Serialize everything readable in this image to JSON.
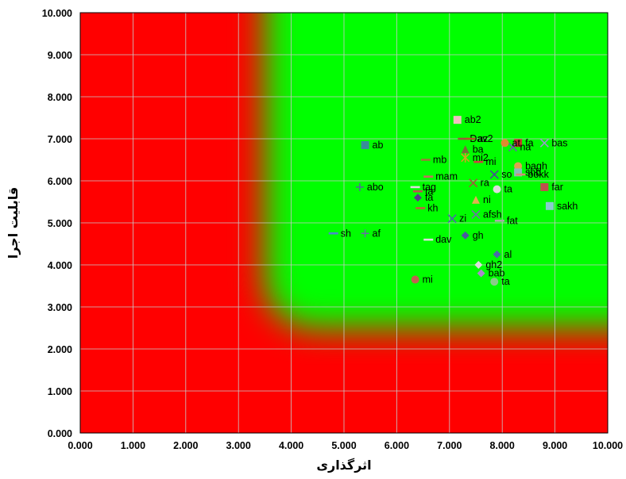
{
  "chart_data": {
    "type": "scatter",
    "xlabel": "اثرگذاری",
    "ylabel": "قابلیت اجرا",
    "xlim": [
      0,
      10
    ],
    "ylim": [
      0,
      10
    ],
    "xticks": [
      "0.000",
      "1.000",
      "2.000",
      "3.000",
      "4.000",
      "5.000",
      "6.000",
      "7.000",
      "8.000",
      "9.000",
      "10.000"
    ],
    "yticks": [
      "0.000",
      "1.000",
      "2.000",
      "3.000",
      "4.000",
      "5.000",
      "6.000",
      "7.000",
      "8.000",
      "9.000",
      "10.000"
    ],
    "grid": true,
    "background": {
      "low_color": "#ff0000",
      "high_color": "#00ff00"
    },
    "points": [
      {
        "label": "ab2",
        "x": 7.15,
        "y": 7.45,
        "marker": "square",
        "color": "#f0c0c0"
      },
      {
        "label": "Dav2",
        "x": 7.25,
        "y": 7.0,
        "marker": "dash",
        "color": "#9b5a3c"
      },
      {
        "label": "az",
        "x": 7.4,
        "y": 7.0,
        "marker": "dash",
        "color": "#b05a2a"
      },
      {
        "label": "fa",
        "x": 8.3,
        "y": 6.9,
        "marker": "square",
        "color": "#c0392b"
      },
      {
        "label": "bas",
        "x": 8.8,
        "y": 6.9,
        "marker": "x",
        "color": "#9999cc"
      },
      {
        "label": "ab",
        "x": 5.4,
        "y": 6.85,
        "marker": "square",
        "color": "#3a8a9a"
      },
      {
        "label": "ba",
        "x": 7.3,
        "y": 6.75,
        "marker": "triangle",
        "color": "#7a6a3a"
      },
      {
        "label": "na",
        "x": 8.2,
        "y": 6.8,
        "marker": "x",
        "color": "#6666aa"
      },
      {
        "label": "at",
        "x": 8.05,
        "y": 6.9,
        "marker": "circle",
        "color": "#e08a30"
      },
      {
        "label": "mb",
        "x": 6.55,
        "y": 6.5,
        "marker": "dash",
        "color": "#9b7a3a"
      },
      {
        "label": "mi2",
        "x": 7.3,
        "y": 6.55,
        "marker": "star",
        "color": "#d4a020"
      },
      {
        "label": "mi",
        "x": 7.55,
        "y": 6.45,
        "marker": "dash",
        "color": "#d04040"
      },
      {
        "label": "bagh",
        "x": 8.3,
        "y": 6.35,
        "marker": "circle",
        "color": "#e0a050"
      },
      {
        "label": "shb",
        "x": 8.3,
        "y": 6.2,
        "marker": "square",
        "color": "#88bbbb"
      },
      {
        "label": "bokk",
        "x": 8.35,
        "y": 6.15,
        "marker": "dash",
        "color": "#d09070"
      },
      {
        "label": "mam",
        "x": 6.6,
        "y": 6.1,
        "marker": "dash",
        "color": "#c07060"
      },
      {
        "label": "so",
        "x": 7.85,
        "y": 6.15,
        "marker": "x",
        "color": "#4a4a9a"
      },
      {
        "label": "abo",
        "x": 5.3,
        "y": 5.85,
        "marker": "plus",
        "color": "#5a5aaa"
      },
      {
        "label": "tag",
        "x": 6.35,
        "y": 5.85,
        "marker": "dash",
        "color": "#dddddd"
      },
      {
        "label": "ta",
        "x": 6.4,
        "y": 5.75,
        "marker": "dash",
        "color": "#c05050"
      },
      {
        "label": "ra",
        "x": 7.45,
        "y": 5.95,
        "marker": "x",
        "color": "#a05a3a"
      },
      {
        "label": "ta",
        "x": 7.9,
        "y": 5.8,
        "marker": "circle",
        "color": "#dddddd"
      },
      {
        "label": "far",
        "x": 8.8,
        "y": 5.85,
        "marker": "square",
        "color": "#c0504d"
      },
      {
        "label": "ta",
        "x": 6.4,
        "y": 5.6,
        "marker": "diamond",
        "color": "#5a3a8a"
      },
      {
        "label": "ni",
        "x": 7.5,
        "y": 5.55,
        "marker": "triangle",
        "color": "#e0b050"
      },
      {
        "label": "kh",
        "x": 6.45,
        "y": 5.35,
        "marker": "dash",
        "color": "#c06040"
      },
      {
        "label": "sakh",
        "x": 8.9,
        "y": 5.4,
        "marker": "square",
        "color": "#88cccc"
      },
      {
        "label": "afsh",
        "x": 7.5,
        "y": 5.2,
        "marker": "x",
        "color": "#7070aa"
      },
      {
        "label": "zi",
        "x": 7.05,
        "y": 5.1,
        "marker": "x",
        "color": "#4a6aaa"
      },
      {
        "label": "fat",
        "x": 7.95,
        "y": 5.05,
        "marker": "dash",
        "color": "#aaaaaa"
      },
      {
        "label": "sh",
        "x": 4.8,
        "y": 4.75,
        "marker": "dash",
        "color": "#4a8acc"
      },
      {
        "label": "af",
        "x": 5.4,
        "y": 4.75,
        "marker": "plus",
        "color": "#6a6aaa"
      },
      {
        "label": "gh",
        "x": 7.3,
        "y": 4.7,
        "marker": "diamond",
        "color": "#4a5aa0"
      },
      {
        "label": "dav",
        "x": 6.6,
        "y": 4.6,
        "marker": "dash",
        "color": "#dddddd"
      },
      {
        "label": "al",
        "x": 7.9,
        "y": 4.25,
        "marker": "diamond",
        "color": "#4a6aaa"
      },
      {
        "label": "gh2",
        "x": 7.55,
        "y": 4.0,
        "marker": "diamond",
        "color": "#dddddd"
      },
      {
        "label": "bab",
        "x": 7.6,
        "y": 3.8,
        "marker": "diamond",
        "color": "#aa88cc"
      },
      {
        "label": "mi",
        "x": 6.35,
        "y": 3.65,
        "marker": "circle",
        "color": "#c06050"
      },
      {
        "label": "ta",
        "x": 7.85,
        "y": 3.6,
        "marker": "circle",
        "color": "#88cc88"
      }
    ]
  }
}
